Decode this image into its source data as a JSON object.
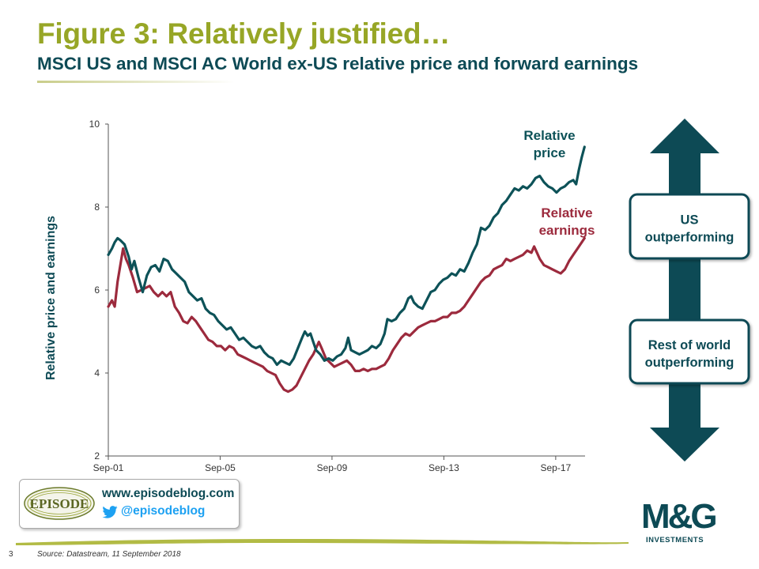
{
  "title": "Figure 3: Relatively justified…",
  "subtitle": "MSCI US and MSCI AC World ex-US relative price and forward earnings",
  "source": "Source: Datastream, 11 September 2018",
  "page_number": "3",
  "branding": {
    "episode_badge": "EPISODE",
    "website": "www.episodeblog.com",
    "twitter": "@episodeblog",
    "company_logo": "M&G",
    "company_sub": "INVESTMENTS"
  },
  "arrow": {
    "up_label": "US\noutperforming",
    "down_label": "Rest of world\noutperforming",
    "color": "#0d4a55"
  },
  "chart_data": {
    "type": "line",
    "title": "",
    "xlabel": "",
    "ylabel": "Relative price and earnings",
    "ylim": [
      2,
      10
    ],
    "yticks": [
      "2",
      "4",
      "6",
      "8",
      "10"
    ],
    "xticks": [
      "Sep-01",
      "Sep-05",
      "Sep-09",
      "Sep-13",
      "Sep-17"
    ],
    "x_tick_years": [
      2001.67,
      2005.67,
      2009.67,
      2013.67,
      2017.67
    ],
    "x_range": [
      2001.67,
      2018.75
    ],
    "grid": false,
    "series": [
      {
        "name": "Relative price",
        "color": "#0d5258",
        "label_lines": [
          "Relative",
          "price"
        ],
        "points": [
          [
            2001.67,
            6.85
          ],
          [
            2001.8,
            7.0
          ],
          [
            2001.9,
            7.15
          ],
          [
            2002.0,
            7.25
          ],
          [
            2002.1,
            7.2
          ],
          [
            2002.25,
            7.1
          ],
          [
            2002.4,
            6.8
          ],
          [
            2002.5,
            6.5
          ],
          [
            2002.6,
            6.7
          ],
          [
            2002.75,
            6.3
          ],
          [
            2002.9,
            5.95
          ],
          [
            2003.05,
            6.35
          ],
          [
            2003.2,
            6.55
          ],
          [
            2003.35,
            6.6
          ],
          [
            2003.5,
            6.45
          ],
          [
            2003.65,
            6.75
          ],
          [
            2003.8,
            6.7
          ],
          [
            2003.95,
            6.5
          ],
          [
            2004.1,
            6.4
          ],
          [
            2004.25,
            6.3
          ],
          [
            2004.4,
            6.2
          ],
          [
            2004.55,
            5.95
          ],
          [
            2004.7,
            5.85
          ],
          [
            2004.85,
            5.75
          ],
          [
            2005.0,
            5.8
          ],
          [
            2005.15,
            5.55
          ],
          [
            2005.3,
            5.45
          ],
          [
            2005.45,
            5.4
          ],
          [
            2005.6,
            5.25
          ],
          [
            2005.75,
            5.15
          ],
          [
            2005.9,
            5.05
          ],
          [
            2006.05,
            5.1
          ],
          [
            2006.2,
            4.95
          ],
          [
            2006.35,
            4.8
          ],
          [
            2006.5,
            4.85
          ],
          [
            2006.65,
            4.75
          ],
          [
            2006.8,
            4.65
          ],
          [
            2006.95,
            4.6
          ],
          [
            2007.1,
            4.65
          ],
          [
            2007.25,
            4.5
          ],
          [
            2007.4,
            4.4
          ],
          [
            2007.55,
            4.35
          ],
          [
            2007.7,
            4.2
          ],
          [
            2007.85,
            4.3
          ],
          [
            2008.0,
            4.25
          ],
          [
            2008.15,
            4.2
          ],
          [
            2008.3,
            4.35
          ],
          [
            2008.45,
            4.6
          ],
          [
            2008.6,
            4.85
          ],
          [
            2008.7,
            5.0
          ],
          [
            2008.8,
            4.9
          ],
          [
            2008.9,
            4.95
          ],
          [
            2009.0,
            4.75
          ],
          [
            2009.1,
            4.55
          ],
          [
            2009.25,
            4.45
          ],
          [
            2009.4,
            4.3
          ],
          [
            2009.55,
            4.35
          ],
          [
            2009.7,
            4.3
          ],
          [
            2009.85,
            4.4
          ],
          [
            2010.0,
            4.45
          ],
          [
            2010.15,
            4.6
          ],
          [
            2010.25,
            4.85
          ],
          [
            2010.35,
            4.55
          ],
          [
            2010.5,
            4.5
          ],
          [
            2010.65,
            4.45
          ],
          [
            2010.8,
            4.5
          ],
          [
            2010.95,
            4.55
          ],
          [
            2011.1,
            4.65
          ],
          [
            2011.25,
            4.6
          ],
          [
            2011.4,
            4.7
          ],
          [
            2011.55,
            4.95
          ],
          [
            2011.65,
            5.3
          ],
          [
            2011.8,
            5.25
          ],
          [
            2011.95,
            5.3
          ],
          [
            2012.1,
            5.45
          ],
          [
            2012.25,
            5.55
          ],
          [
            2012.4,
            5.8
          ],
          [
            2012.5,
            5.85
          ],
          [
            2012.6,
            5.7
          ],
          [
            2012.75,
            5.6
          ],
          [
            2012.9,
            5.55
          ],
          [
            2013.05,
            5.75
          ],
          [
            2013.2,
            5.95
          ],
          [
            2013.35,
            6.0
          ],
          [
            2013.5,
            6.15
          ],
          [
            2013.65,
            6.25
          ],
          [
            2013.8,
            6.3
          ],
          [
            2013.95,
            6.4
          ],
          [
            2014.1,
            6.35
          ],
          [
            2014.25,
            6.5
          ],
          [
            2014.4,
            6.45
          ],
          [
            2014.55,
            6.65
          ],
          [
            2014.7,
            6.9
          ],
          [
            2014.85,
            7.1
          ],
          [
            2015.0,
            7.5
          ],
          [
            2015.15,
            7.45
          ],
          [
            2015.3,
            7.55
          ],
          [
            2015.45,
            7.75
          ],
          [
            2015.6,
            7.85
          ],
          [
            2015.75,
            8.05
          ],
          [
            2015.9,
            8.15
          ],
          [
            2016.05,
            8.3
          ],
          [
            2016.2,
            8.45
          ],
          [
            2016.35,
            8.4
          ],
          [
            2016.5,
            8.5
          ],
          [
            2016.65,
            8.45
          ],
          [
            2016.8,
            8.55
          ],
          [
            2016.95,
            8.7
          ],
          [
            2017.1,
            8.75
          ],
          [
            2017.25,
            8.6
          ],
          [
            2017.4,
            8.5
          ],
          [
            2017.55,
            8.45
          ],
          [
            2017.7,
            8.35
          ],
          [
            2017.85,
            8.45
          ],
          [
            2018.0,
            8.5
          ],
          [
            2018.15,
            8.6
          ],
          [
            2018.3,
            8.65
          ],
          [
            2018.4,
            8.55
          ],
          [
            2018.5,
            8.9
          ],
          [
            2018.6,
            9.2
          ],
          [
            2018.7,
            9.45
          ]
        ]
      },
      {
        "name": "Relative earnings",
        "color": "#9c2a3d",
        "label_lines": [
          "Relative",
          "earnings"
        ],
        "points": [
          [
            2001.67,
            5.6
          ],
          [
            2001.8,
            5.75
          ],
          [
            2001.9,
            5.6
          ],
          [
            2002.0,
            6.2
          ],
          [
            2002.1,
            6.6
          ],
          [
            2002.2,
            7.0
          ],
          [
            2002.3,
            6.75
          ],
          [
            2002.4,
            6.6
          ],
          [
            2002.55,
            6.3
          ],
          [
            2002.7,
            5.95
          ],
          [
            2002.85,
            6.0
          ],
          [
            2003.0,
            6.05
          ],
          [
            2003.15,
            6.1
          ],
          [
            2003.3,
            5.95
          ],
          [
            2003.45,
            5.85
          ],
          [
            2003.6,
            5.95
          ],
          [
            2003.75,
            5.85
          ],
          [
            2003.9,
            5.95
          ],
          [
            2004.05,
            5.6
          ],
          [
            2004.2,
            5.45
          ],
          [
            2004.35,
            5.25
          ],
          [
            2004.5,
            5.2
          ],
          [
            2004.65,
            5.35
          ],
          [
            2004.8,
            5.25
          ],
          [
            2004.95,
            5.1
          ],
          [
            2005.1,
            4.95
          ],
          [
            2005.25,
            4.8
          ],
          [
            2005.4,
            4.75
          ],
          [
            2005.55,
            4.65
          ],
          [
            2005.7,
            4.65
          ],
          [
            2005.85,
            4.55
          ],
          [
            2006.0,
            4.65
          ],
          [
            2006.15,
            4.6
          ],
          [
            2006.3,
            4.45
          ],
          [
            2006.45,
            4.4
          ],
          [
            2006.6,
            4.35
          ],
          [
            2006.75,
            4.3
          ],
          [
            2006.9,
            4.25
          ],
          [
            2007.05,
            4.2
          ],
          [
            2007.2,
            4.15
          ],
          [
            2007.35,
            4.05
          ],
          [
            2007.5,
            4.0
          ],
          [
            2007.65,
            3.95
          ],
          [
            2007.8,
            3.75
          ],
          [
            2007.95,
            3.6
          ],
          [
            2008.1,
            3.55
          ],
          [
            2008.25,
            3.6
          ],
          [
            2008.4,
            3.7
          ],
          [
            2008.55,
            3.9
          ],
          [
            2008.7,
            4.1
          ],
          [
            2008.85,
            4.3
          ],
          [
            2009.0,
            4.45
          ],
          [
            2009.1,
            4.6
          ],
          [
            2009.2,
            4.75
          ],
          [
            2009.3,
            4.6
          ],
          [
            2009.45,
            4.35
          ],
          [
            2009.6,
            4.25
          ],
          [
            2009.75,
            4.15
          ],
          [
            2009.9,
            4.2
          ],
          [
            2010.05,
            4.25
          ],
          [
            2010.2,
            4.3
          ],
          [
            2010.35,
            4.2
          ],
          [
            2010.5,
            4.05
          ],
          [
            2010.65,
            4.05
          ],
          [
            2010.8,
            4.1
          ],
          [
            2010.95,
            4.05
          ],
          [
            2011.1,
            4.1
          ],
          [
            2011.25,
            4.1
          ],
          [
            2011.4,
            4.15
          ],
          [
            2011.55,
            4.2
          ],
          [
            2011.7,
            4.35
          ],
          [
            2011.85,
            4.55
          ],
          [
            2012.0,
            4.7
          ],
          [
            2012.15,
            4.85
          ],
          [
            2012.3,
            4.95
          ],
          [
            2012.45,
            4.9
          ],
          [
            2012.6,
            5.0
          ],
          [
            2012.75,
            5.1
          ],
          [
            2012.9,
            5.15
          ],
          [
            2013.05,
            5.2
          ],
          [
            2013.2,
            5.25
          ],
          [
            2013.35,
            5.25
          ],
          [
            2013.5,
            5.3
          ],
          [
            2013.65,
            5.35
          ],
          [
            2013.8,
            5.35
          ],
          [
            2013.95,
            5.45
          ],
          [
            2014.1,
            5.45
          ],
          [
            2014.25,
            5.5
          ],
          [
            2014.4,
            5.6
          ],
          [
            2014.55,
            5.75
          ],
          [
            2014.7,
            5.9
          ],
          [
            2014.85,
            6.05
          ],
          [
            2015.0,
            6.2
          ],
          [
            2015.15,
            6.3
          ],
          [
            2015.3,
            6.35
          ],
          [
            2015.45,
            6.5
          ],
          [
            2015.6,
            6.55
          ],
          [
            2015.75,
            6.6
          ],
          [
            2015.9,
            6.75
          ],
          [
            2016.05,
            6.7
          ],
          [
            2016.2,
            6.75
          ],
          [
            2016.35,
            6.8
          ],
          [
            2016.5,
            6.85
          ],
          [
            2016.65,
            6.95
          ],
          [
            2016.8,
            6.9
          ],
          [
            2016.9,
            7.05
          ],
          [
            2017.0,
            6.9
          ],
          [
            2017.1,
            6.75
          ],
          [
            2017.25,
            6.6
          ],
          [
            2017.4,
            6.55
          ],
          [
            2017.55,
            6.5
          ],
          [
            2017.7,
            6.45
          ],
          [
            2017.85,
            6.4
          ],
          [
            2018.0,
            6.5
          ],
          [
            2018.15,
            6.7
          ],
          [
            2018.3,
            6.85
          ],
          [
            2018.45,
            7.0
          ],
          [
            2018.6,
            7.15
          ],
          [
            2018.7,
            7.25
          ]
        ]
      }
    ]
  }
}
